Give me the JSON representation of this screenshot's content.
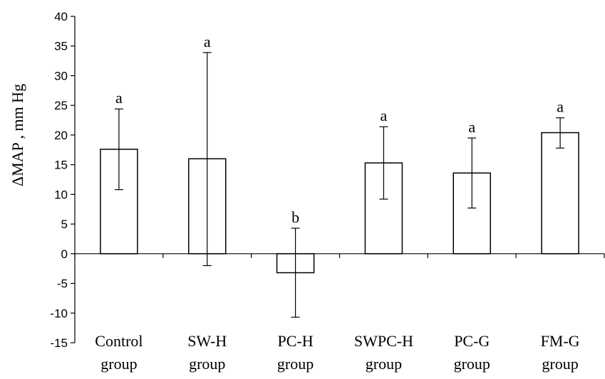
{
  "chart_data": {
    "type": "bar",
    "title": "",
    "xlabel": "",
    "ylabel": "ΔMAP , mm Hg",
    "ylim": [
      -15,
      40
    ],
    "yticks": [
      "-15",
      "-10",
      "-5",
      "0",
      "5",
      "10",
      "15",
      "20",
      "25",
      "30",
      "35",
      "40"
    ],
    "grid": false,
    "categories": [
      [
        "Control",
        "group"
      ],
      [
        "SW-H",
        "group"
      ],
      [
        "PC-H",
        "group"
      ],
      [
        "SWPC-H",
        "group"
      ],
      [
        "PC-G",
        "group"
      ],
      [
        "FM-G",
        "group"
      ]
    ],
    "values": [
      17.6,
      16.0,
      -3.2,
      15.3,
      13.6,
      20.4
    ],
    "error_low": [
      10.8,
      -2.0,
      -10.7,
      9.2,
      7.7,
      17.8
    ],
    "error_high": [
      24.4,
      33.9,
      4.3,
      21.4,
      19.5,
      22.9
    ],
    "significance_labels": [
      "a",
      "a",
      "b",
      "a",
      "a",
      "a"
    ],
    "colors": {
      "bar_fill": "#ffffff",
      "bar_stroke": "#000000",
      "axis": "#000000"
    }
  }
}
